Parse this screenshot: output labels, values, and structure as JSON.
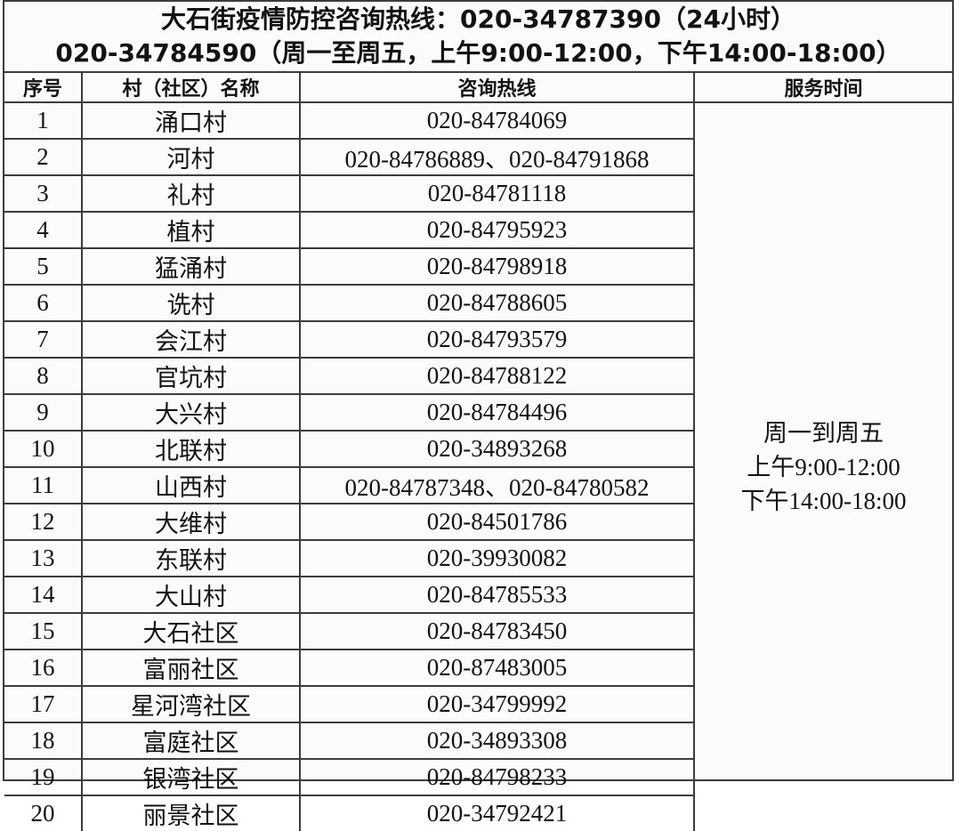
{
  "title": {
    "line1": "大石街疫情防控咨询热线：020-34787390（24小时）",
    "line2": "020-34784590（周一至周五，上午9:00-12:00，下午14:00-18:00）"
  },
  "table": {
    "columns": [
      "序号",
      "村（社区）名称",
      "咨询热线",
      "服务时间"
    ],
    "rows": [
      {
        "no": "1",
        "name": "涌口村",
        "phone": "020-84784069"
      },
      {
        "no": "2",
        "name": "河村",
        "phone": "020-84786889、020-84791868"
      },
      {
        "no": "3",
        "name": "礼村",
        "phone": "020-84781118"
      },
      {
        "no": "4",
        "name": "植村",
        "phone": "020-84795923"
      },
      {
        "no": "5",
        "name": "猛涌村",
        "phone": "020-84798918"
      },
      {
        "no": "6",
        "name": "诜村",
        "phone": "020-84788605"
      },
      {
        "no": "7",
        "name": "会江村",
        "phone": "020-84793579"
      },
      {
        "no": "8",
        "name": "官坑村",
        "phone": "020-84788122"
      },
      {
        "no": "9",
        "name": "大兴村",
        "phone": "020-84784496"
      },
      {
        "no": "10",
        "name": "北联村",
        "phone": "020-34893268"
      },
      {
        "no": "11",
        "name": "山西村",
        "phone": "020-84787348、020-84780582"
      },
      {
        "no": "12",
        "name": "大维村",
        "phone": "020-84501786"
      },
      {
        "no": "13",
        "name": "东联村",
        "phone": "020-39930082"
      },
      {
        "no": "14",
        "name": "大山村",
        "phone": "020-84785533"
      },
      {
        "no": "15",
        "name": "大石社区",
        "phone": "020-84783450"
      },
      {
        "no": "16",
        "name": "富丽社区",
        "phone": "020-87483005"
      },
      {
        "no": "17",
        "name": "星河湾社区",
        "phone": "020-34799992"
      },
      {
        "no": "18",
        "name": "富庭社区",
        "phone": "020-34893308"
      },
      {
        "no": "19",
        "name": "银湾社区",
        "phone": "020-84798233"
      },
      {
        "no": "20",
        "name": "丽景社区",
        "phone": "020-34792421"
      }
    ],
    "service_time": [
      "周一到周五",
      "上午9:00-12:00",
      "下午14:00-18:00"
    ]
  },
  "colors": {
    "border": "#3c3c3c",
    "text": "#121212",
    "background": "#fbfbfb"
  }
}
